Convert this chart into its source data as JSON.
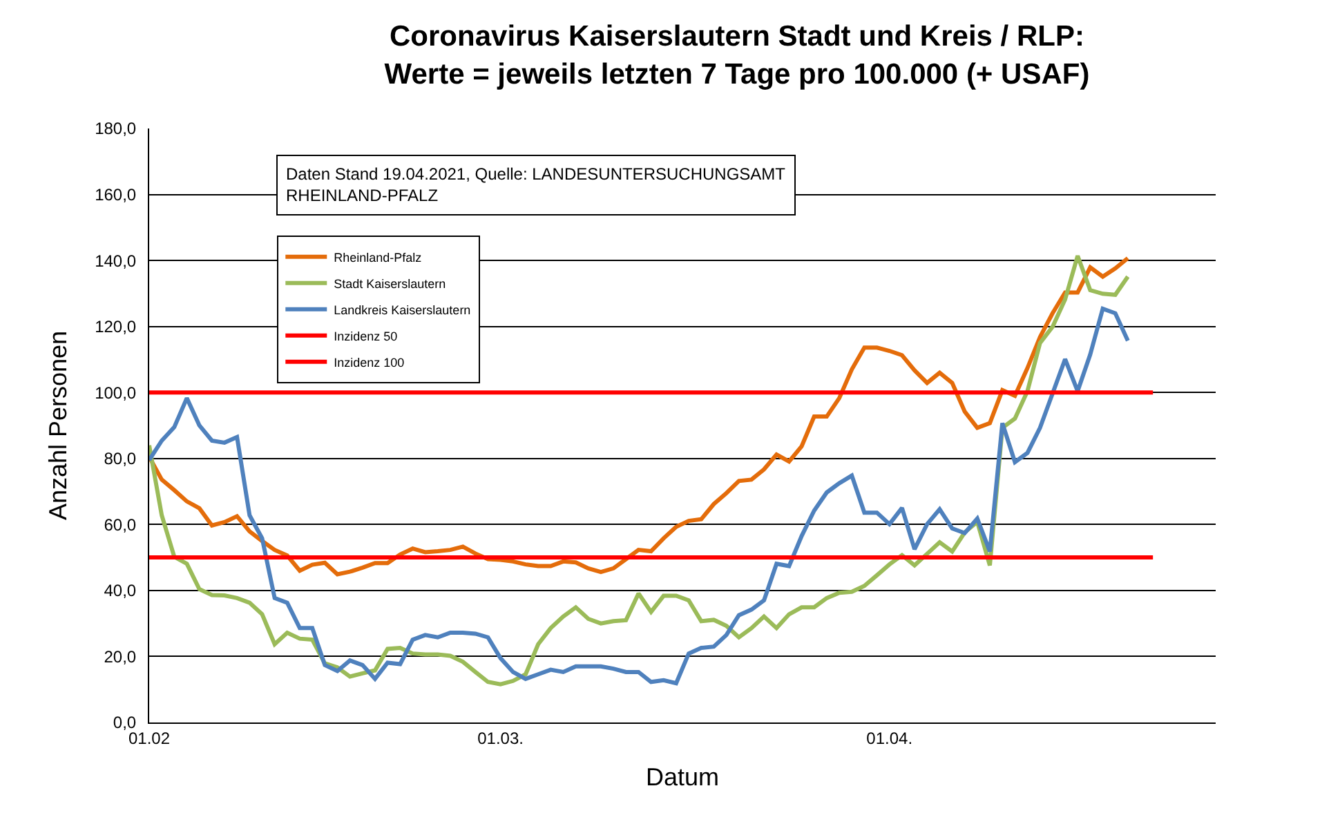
{
  "chart_data": {
    "type": "line",
    "title": "Coronavirus Kaiserslautern Stadt und Kreis / RLP:\nWerte = jeweils letzten 7 Tage pro 100.000 (+ USAF)",
    "xlabel": "Datum",
    "ylabel": "Anzahl Personen",
    "annotations": [
      "Daten Stand 19.04.2021, Quelle: LANDESUNTERSUCHUNGSAMT\nRHEINLAND-PFALZ"
    ],
    "x": [
      "2021-02-01",
      "2021-02-02",
      "2021-02-03",
      "2021-02-04",
      "2021-02-05",
      "2021-02-06",
      "2021-02-07",
      "2021-02-08",
      "2021-02-09",
      "2021-02-10",
      "2021-02-11",
      "2021-02-12",
      "2021-02-13",
      "2021-02-14",
      "2021-02-15",
      "2021-02-16",
      "2021-02-17",
      "2021-02-18",
      "2021-02-19",
      "2021-02-20",
      "2021-02-21",
      "2021-02-22",
      "2021-02-23",
      "2021-02-24",
      "2021-02-25",
      "2021-02-26",
      "2021-02-27",
      "2021-02-28",
      "2021-03-01",
      "2021-03-02",
      "2021-03-03",
      "2021-03-04",
      "2021-03-05",
      "2021-03-06",
      "2021-03-07",
      "2021-03-08",
      "2021-03-09",
      "2021-03-10",
      "2021-03-11",
      "2021-03-12",
      "2021-03-13",
      "2021-03-14",
      "2021-03-15",
      "2021-03-16",
      "2021-03-17",
      "2021-03-18",
      "2021-03-19",
      "2021-03-20",
      "2021-03-21",
      "2021-03-22",
      "2021-03-23",
      "2021-03-24",
      "2021-03-25",
      "2021-03-26",
      "2021-03-27",
      "2021-03-28",
      "2021-03-29",
      "2021-03-30",
      "2021-03-31",
      "2021-04-01",
      "2021-04-02",
      "2021-04-03",
      "2021-04-04",
      "2021-04-05",
      "2021-04-06",
      "2021-04-07",
      "2021-04-08",
      "2021-04-09",
      "2021-04-10",
      "2021-04-11",
      "2021-04-12",
      "2021-04-13",
      "2021-04-14",
      "2021-04-15",
      "2021-04-16",
      "2021-04-17",
      "2021-04-18",
      "2021-04-19",
      "2021-04-20"
    ],
    "series": [
      {
        "name": "Rheinland-Pfalz",
        "color": "#e46c0a",
        "values": [
          80.5,
          73.6,
          70.4,
          67.0,
          64.9,
          59.7,
          60.7,
          62.5,
          57.9,
          55.0,
          52.3,
          50.6,
          46.0,
          47.8,
          48.4,
          44.9,
          45.7,
          46.9,
          48.3,
          48.3,
          50.9,
          52.7,
          51.6,
          51.9,
          52.3,
          53.3,
          51.2,
          49.5,
          49.3,
          48.8,
          47.9,
          47.4,
          47.4,
          48.8,
          48.5,
          46.7,
          45.6,
          46.7,
          49.5,
          52.3,
          51.9,
          55.8,
          59.3,
          61.1,
          61.6,
          66.2,
          69.5,
          73.2,
          73.6,
          76.7,
          81.2,
          79.1,
          83.7,
          92.7,
          92.7,
          98.3,
          107.0,
          113.6,
          113.6,
          112.6,
          111.3,
          106.7,
          102.9,
          106.0,
          102.9,
          94.2,
          89.3,
          90.7,
          100.7,
          99.0,
          107.4,
          116.8,
          124.0,
          130.3,
          130.3,
          137.9,
          135.1,
          137.6,
          140.7
        ]
      },
      {
        "name": "Stadt Kaiserslautern",
        "color": "#9bbb59",
        "values": [
          84.0,
          62.8,
          50.2,
          48.1,
          40.4,
          38.6,
          38.5,
          37.7,
          36.3,
          32.8,
          23.7,
          27.2,
          25.4,
          25.1,
          17.9,
          16.7,
          13.9,
          14.9,
          15.8,
          22.3,
          22.6,
          20.9,
          20.6,
          20.6,
          20.2,
          18.4,
          15.3,
          12.3,
          11.6,
          12.6,
          14.6,
          23.7,
          28.6,
          32.1,
          34.9,
          31.4,
          30.0,
          30.7,
          31.0,
          39.1,
          33.5,
          38.4,
          38.4,
          37.0,
          30.7,
          31.1,
          29.3,
          25.8,
          28.6,
          32.1,
          28.6,
          32.8,
          34.9,
          34.9,
          37.7,
          39.3,
          39.6,
          41.4,
          44.6,
          47.9,
          50.7,
          47.6,
          51.1,
          54.6,
          51.8,
          57.6,
          60.8,
          47.6,
          89.3,
          92.1,
          100.4,
          115.0,
          119.9,
          128.2,
          141.4,
          131.0,
          129.9,
          129.6,
          135.1
        ]
      },
      {
        "name": "Landkreis Kaiserslautern",
        "color": "#4f81bd",
        "values": [
          79.5,
          85.4,
          89.5,
          98.3,
          90.0,
          85.4,
          84.8,
          86.5,
          62.8,
          55.8,
          37.7,
          36.3,
          28.6,
          28.6,
          17.4,
          15.6,
          18.8,
          17.4,
          13.2,
          18.1,
          17.7,
          25.1,
          26.5,
          25.8,
          27.2,
          27.2,
          26.9,
          25.8,
          19.5,
          15.3,
          13.2,
          14.6,
          16.0,
          15.3,
          17.0,
          17.0,
          17.0,
          16.3,
          15.3,
          15.3,
          12.3,
          12.8,
          11.9,
          20.9,
          22.6,
          23.0,
          26.5,
          32.5,
          34.2,
          37.0,
          48.1,
          47.4,
          56.5,
          64.2,
          69.7,
          72.5,
          74.8,
          63.6,
          63.6,
          60.1,
          65.0,
          52.5,
          60.1,
          64.6,
          58.8,
          57.4,
          61.8,
          51.8,
          90.7,
          78.9,
          81.7,
          89.3,
          99.7,
          110.1,
          100.4,
          111.5,
          125.4,
          124.0,
          115.7
        ]
      },
      {
        "name": "Inzidenz 50",
        "color": "#ff0000",
        "x": [
          "2021-02-01",
          "2021-04-22"
        ],
        "values": [
          50,
          50
        ]
      },
      {
        "name": "Inzidenz 100",
        "color": "#ff0000",
        "x": [
          "2021-02-01",
          "2021-04-22"
        ],
        "values": [
          100,
          100
        ]
      }
    ],
    "xlim": [
      "2021-02-01",
      "2021-04-27"
    ],
    "xticks": [
      {
        "value": "2021-02-01",
        "label": "01.02"
      },
      {
        "value": "2021-03-01",
        "label": "01.03."
      },
      {
        "value": "2021-04-01",
        "label": "01.04."
      }
    ],
    "ylim": [
      0,
      180
    ],
    "yticks": [
      {
        "value": 0,
        "label": "0,0"
      },
      {
        "value": 20,
        "label": "20,0"
      },
      {
        "value": 40,
        "label": "40,0"
      },
      {
        "value": 60,
        "label": "60,0"
      },
      {
        "value": 80,
        "label": "80,0"
      },
      {
        "value": 100,
        "label": "100,0"
      },
      {
        "value": 120,
        "label": "120,0"
      },
      {
        "value": 140,
        "label": "140,0"
      },
      {
        "value": 160,
        "label": "160,0"
      },
      {
        "value": 180,
        "label": "180,0"
      }
    ],
    "grid": "y",
    "legend": "top left",
    "marker": "none",
    "line_style": "solid"
  }
}
